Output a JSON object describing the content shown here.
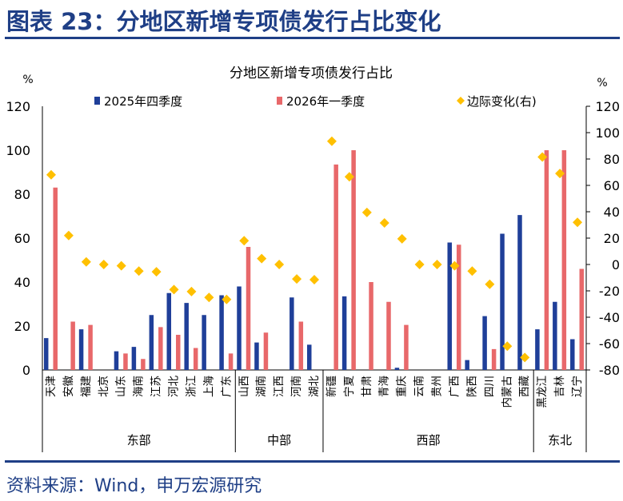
{
  "header": {
    "title": "图表 23：分地区新增专项债发行占比变化"
  },
  "source": {
    "text": "资料来源：Wind，申万宏源研究"
  },
  "colors": {
    "brand": "#1f3f86",
    "series_2025Q4": "#1f3f99",
    "series_2026Q1": "#e8686a",
    "series_change": "#ffc000"
  },
  "chart_data": {
    "type": "bar",
    "title": "分地区新增专项债发行占比",
    "ylabel_left": "%",
    "ylabel_right": "%",
    "ylim_left": [
      0,
      120
    ],
    "yticks_left": [
      0,
      20,
      40,
      60,
      80,
      100,
      120
    ],
    "ylim_right": [
      -80,
      120
    ],
    "yticks_right": [
      -80,
      -60,
      -40,
      -20,
      0,
      20,
      40,
      60,
      80,
      100,
      120
    ],
    "grid": false,
    "legend_position": "top",
    "categories": [
      "天津",
      "安徽",
      "福建",
      "北京",
      "山东",
      "海南",
      "江苏",
      "河北",
      "浙江",
      "上海",
      "广东",
      "山西",
      "湖南",
      "江西",
      "河南",
      "湖北",
      "新疆",
      "宁夏",
      "甘肃",
      "青海",
      "重庆",
      "云南",
      "贵州",
      "广西",
      "陕西",
      "四川",
      "内蒙古",
      "西藏",
      "黑龙江",
      "吉林",
      "辽宁"
    ],
    "groups": [
      {
        "name": "东部",
        "start": 0,
        "end": 10
      },
      {
        "name": "中部",
        "start": 11,
        "end": 15
      },
      {
        "name": "西部",
        "start": 16,
        "end": 27
      },
      {
        "name": "东北",
        "start": 28,
        "end": 30
      }
    ],
    "series": [
      {
        "name": "2025年四季度",
        "type": "bar",
        "axis": "left",
        "values": [
          14.5,
          0,
          18.5,
          0,
          8.5,
          10.5,
          25,
          35,
          30.5,
          25,
          34,
          38,
          12.5,
          0,
          33,
          11.5,
          0,
          33.5,
          0,
          0,
          1,
          0,
          0,
          58,
          4.5,
          24.5,
          62,
          70.5,
          18.5,
          31,
          14
        ]
      },
      {
        "name": "2026年一季度",
        "type": "bar",
        "axis": "left",
        "values": [
          83,
          22,
          20.5,
          0,
          7.5,
          5,
          19.5,
          16,
          10,
          0,
          7.5,
          56,
          17,
          0,
          22,
          0,
          93.5,
          100,
          40,
          31,
          20.5,
          0,
          0,
          57,
          0,
          9.5,
          0,
          0,
          100,
          100,
          46
        ]
      },
      {
        "name": "边际变化(右)",
        "type": "scatter",
        "axis": "right",
        "values": [
          68,
          22,
          2,
          0,
          -1,
          -5,
          -5.5,
          -19,
          -20.5,
          -25,
          -26.5,
          18,
          4.5,
          0,
          -11,
          -11.5,
          93.5,
          66.5,
          39.5,
          31.5,
          19.5,
          0,
          0,
          -1,
          -5,
          -15,
          -62,
          -70.5,
          81.5,
          69,
          32
        ]
      }
    ]
  }
}
